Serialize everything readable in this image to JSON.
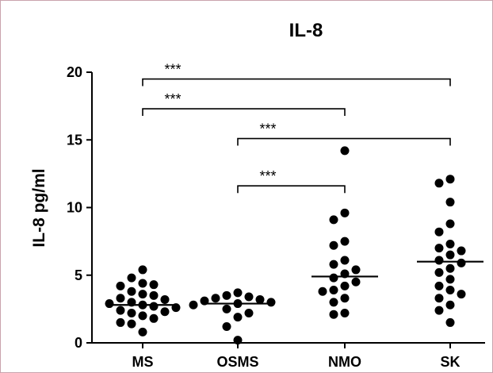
{
  "chart_data": {
    "type": "scatter",
    "title": "IL-8",
    "ylabel": "IL-8 pg/ml",
    "xlabel": "",
    "ylim": [
      0,
      20
    ],
    "yticks": [
      0,
      5,
      10,
      15,
      20
    ],
    "categories": [
      "MS",
      "OSMS",
      "NMO",
      "SK"
    ],
    "medians": [
      2.8,
      2.9,
      4.9,
      6.0
    ],
    "series": [
      {
        "values": [
          5.4,
          4.8,
          4.4,
          4.3,
          4.2,
          3.8,
          3.6,
          3.5,
          3.3,
          3.2,
          3.0,
          2.9,
          2.8,
          2.7,
          2.6,
          2.4,
          2.3,
          2.2,
          2.0,
          1.8,
          1.5,
          1.4,
          0.8
        ]
      },
      {
        "values": [
          3.7,
          3.5,
          3.4,
          3.3,
          3.2,
          3.1,
          3.0,
          2.9,
          2.8,
          2.5,
          2.2,
          1.9,
          1.2,
          0.2
        ]
      },
      {
        "values": [
          14.2,
          9.6,
          9.1,
          7.5,
          7.2,
          6.1,
          5.8,
          5.4,
          5.1,
          4.8,
          4.5,
          4.2,
          3.9,
          3.8,
          3.3,
          3.0,
          2.2,
          2.1
        ]
      },
      {
        "values": [
          12.1,
          11.8,
          10.4,
          8.8,
          8.2,
          7.3,
          7.0,
          6.8,
          6.5,
          6.1,
          5.9,
          5.5,
          5.2,
          4.7,
          4.2,
          3.9,
          3.6,
          3.3,
          2.8,
          2.4,
          1.5
        ]
      }
    ],
    "annotations": [
      {
        "from": "MS",
        "to": "SK",
        "y": 19.5,
        "label": "***"
      },
      {
        "from": "MS",
        "to": "NMO",
        "y": 17.3,
        "label": "***"
      },
      {
        "from": "OSMS",
        "to": "SK",
        "y": 15.1,
        "label": "***"
      },
      {
        "from": "OSMS",
        "to": "NMO",
        "y": 11.6,
        "label": "***"
      }
    ]
  }
}
